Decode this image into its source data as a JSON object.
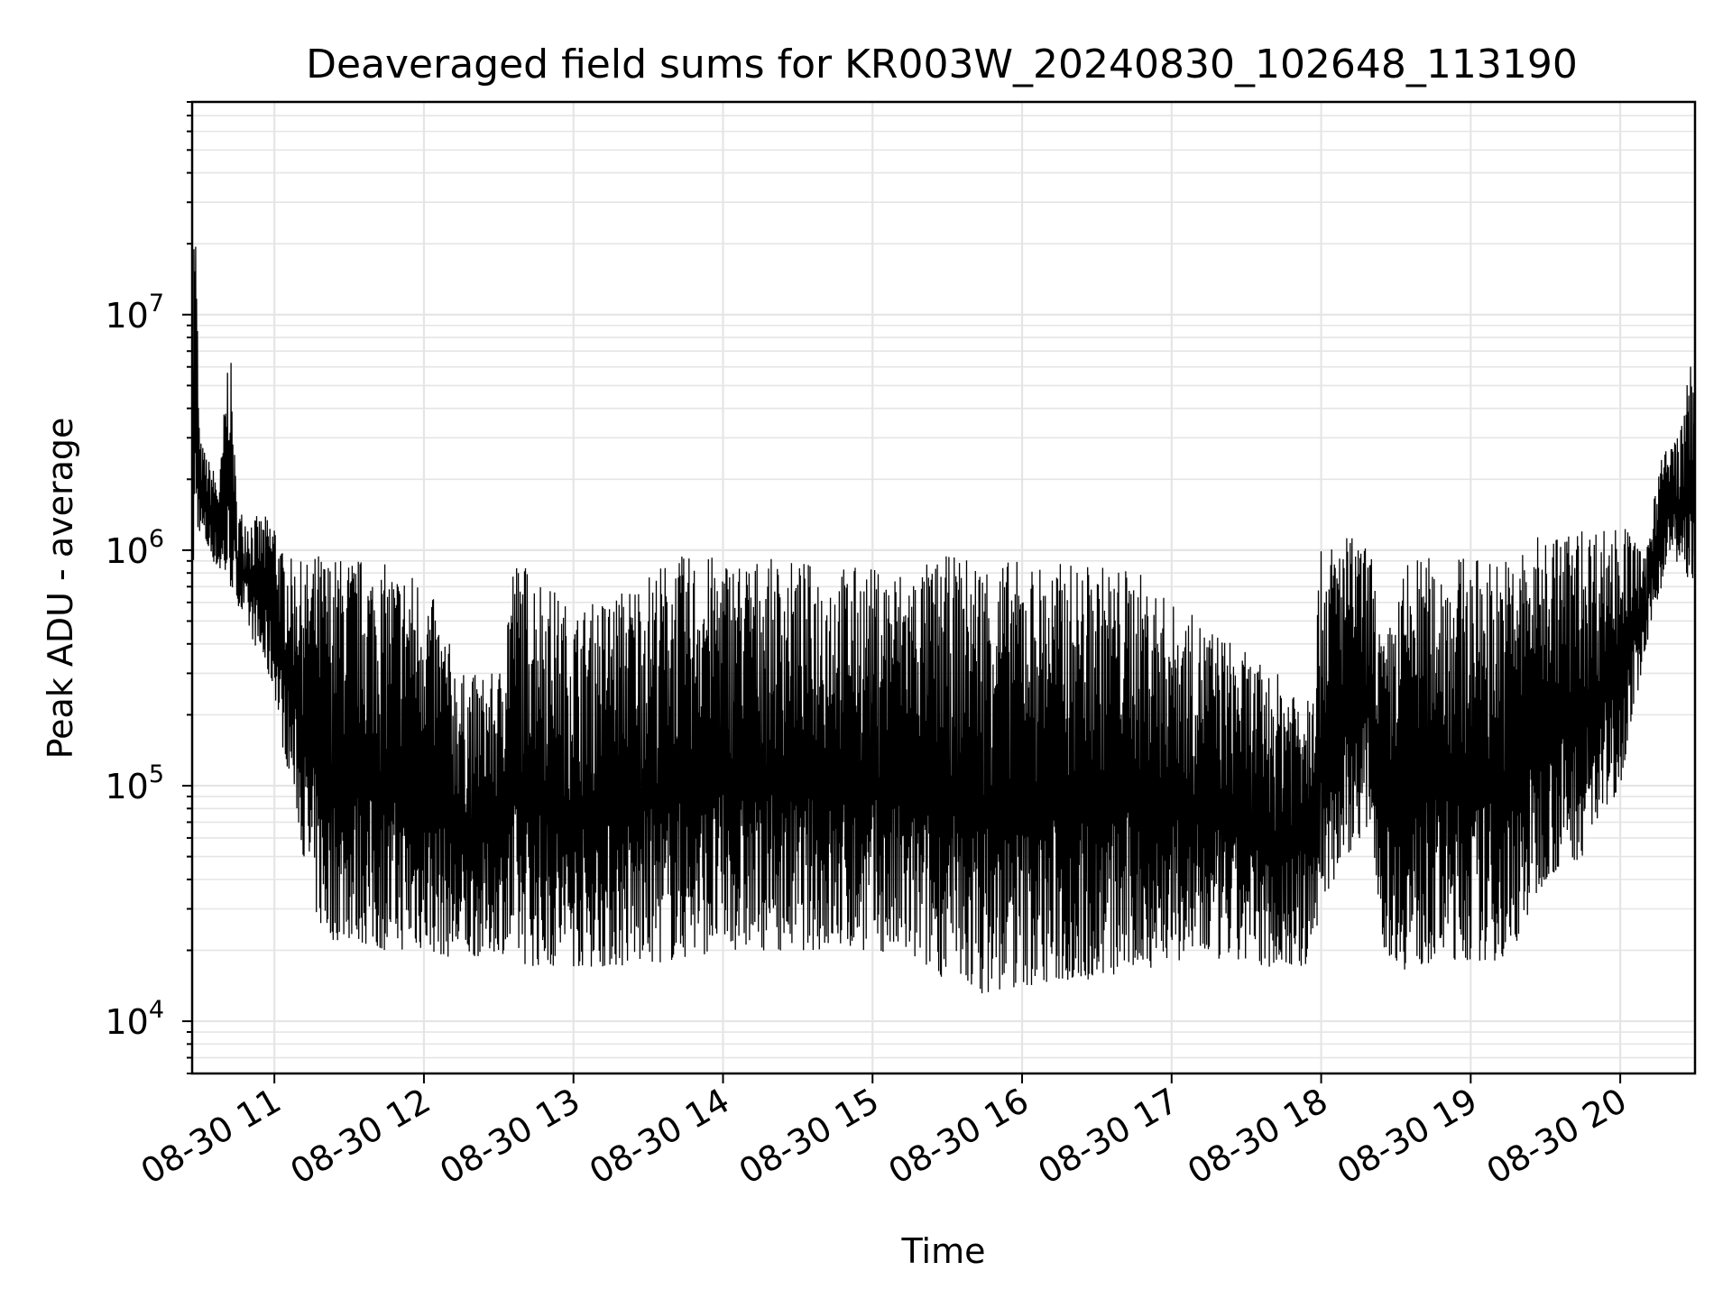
{
  "chart_data": {
    "type": "line",
    "title": "Deaveraged field sums for KR003W_20240830_102648_113190",
    "xlabel": "Time",
    "ylabel": "Peak ADU - average",
    "yscale": "log",
    "ylim": [
      6000,
      80000000
    ],
    "xlim": [
      "2024-08-30 10:27",
      "2024-08-30 20:30"
    ],
    "grid": true,
    "grid_minor": true,
    "line_color": "#000000",
    "x_ticks": [
      "08-30 11",
      "08-30 12",
      "08-30 13",
      "08-30 14",
      "08-30 15",
      "08-30 16",
      "08-30 17",
      "08-30 18",
      "08-30 19",
      "08-30 20"
    ],
    "x_tick_times": [
      "2024-08-30 11:00",
      "2024-08-30 12:00",
      "2024-08-30 13:00",
      "2024-08-30 14:00",
      "2024-08-30 15:00",
      "2024-08-30 16:00",
      "2024-08-30 17:00",
      "2024-08-30 18:00",
      "2024-08-30 19:00",
      "2024-08-30 20:00"
    ],
    "y_ticks": [
      {
        "value": 10000,
        "base": "10",
        "exp": "4"
      },
      {
        "value": 100000,
        "base": "10",
        "exp": "5"
      },
      {
        "value": 1000000,
        "base": "10",
        "exp": "6"
      },
      {
        "value": 10000000,
        "base": "10",
        "exp": "7"
      }
    ],
    "series": [
      {
        "x": [
          "2024-08-30 10:27",
          "2024-08-30 10:28",
          "2024-08-30 10:30",
          "2024-08-30 10:33",
          "2024-08-30 10:38",
          "2024-08-30 10:42",
          "2024-08-30 10:45",
          "2024-08-30 10:52",
          "2024-08-30 11:00",
          "2024-08-30 11:03",
          "2024-08-30 11:08",
          "2024-08-30 11:13",
          "2024-08-30 11:18",
          "2024-08-30 11:22",
          "2024-08-30 11:27",
          "2024-08-30 11:33",
          "2024-08-30 11:40",
          "2024-08-30 11:50",
          "2024-08-30 12:00",
          "2024-08-30 12:15",
          "2024-08-30 12:30",
          "2024-08-30 12:35",
          "2024-08-30 12:45",
          "2024-08-30 13:00",
          "2024-08-30 13:20",
          "2024-08-30 13:40",
          "2024-08-30 14:00",
          "2024-08-30 14:30",
          "2024-08-30 15:00",
          "2024-08-30 15:15",
          "2024-08-30 15:30",
          "2024-08-30 15:45",
          "2024-08-30 16:00",
          "2024-08-30 16:30",
          "2024-08-30 16:45",
          "2024-08-30 17:00",
          "2024-08-30 17:20",
          "2024-08-30 17:40",
          "2024-08-30 17:55",
          "2024-08-30 18:00",
          "2024-08-30 18:10",
          "2024-08-30 18:20",
          "2024-08-30 18:25",
          "2024-08-30 18:35",
          "2024-08-30 18:45",
          "2024-08-30 19:00",
          "2024-08-30 19:15",
          "2024-08-30 19:30",
          "2024-08-30 19:45",
          "2024-08-30 20:00",
          "2024-08-30 20:05",
          "2024-08-30 20:10",
          "2024-08-30 20:15",
          "2024-08-30 20:20",
          "2024-08-30 20:25",
          "2024-08-30 20:28"
        ],
        "low": [
          600000,
          1000000,
          1200000,
          1000000,
          800000,
          700000,
          600000,
          400000,
          250000,
          150000,
          90000,
          40000,
          25000,
          22000,
          22000,
          22000,
          20000,
          20000,
          20000,
          18000,
          20000,
          18000,
          17000,
          17000,
          17000,
          18000,
          20000,
          20000,
          20000,
          18000,
          15000,
          13000,
          14000,
          15000,
          16000,
          18000,
          18000,
          17000,
          17000,
          30000,
          50000,
          70000,
          20000,
          16000,
          18000,
          18000,
          18000,
          40000,
          50000,
          100000,
          200000,
          350000,
          600000,
          1000000,
          800000,
          700000
        ],
        "high": [
          7000000,
          45000000,
          3000000,
          2500000,
          2000000,
          9000000,
          1500000,
          1400000,
          1400000,
          1000000,
          900000,
          900000,
          1000000,
          950000,
          950000,
          950000,
          900000,
          850000,
          800000,
          300000,
          300000,
          950000,
          850000,
          550000,
          700000,
          950000,
          950000,
          900000,
          850000,
          850000,
          950000,
          950000,
          900000,
          880000,
          850000,
          600000,
          450000,
          300000,
          300000,
          1000000,
          1200000,
          1000000,
          400000,
          950000,
          950000,
          950000,
          950000,
          1200000,
          1250000,
          1300000,
          1200000,
          900000,
          2500000,
          2800000,
          3500000,
          6500000
        ]
      }
    ]
  }
}
